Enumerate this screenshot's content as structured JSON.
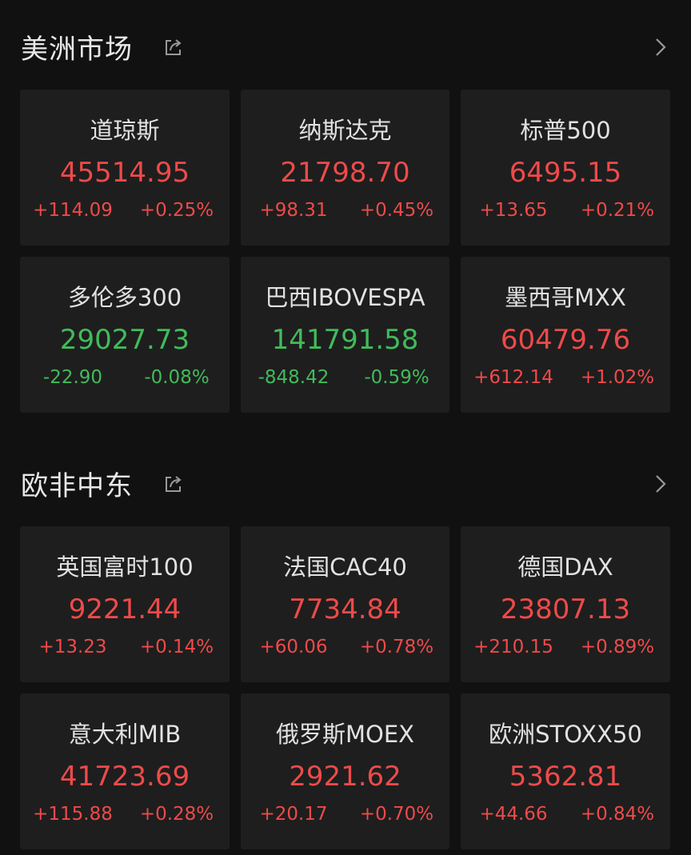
{
  "colors": {
    "up": "#ee4a4a",
    "down": "#41bb5b",
    "background": "#111111",
    "card": "#1e1e1e"
  },
  "sections": [
    {
      "title": "美洲市场",
      "share_icon": "share-icon",
      "more_icon": "chevron-right-icon",
      "items": [
        {
          "name": "道琼斯",
          "price": "45514.95",
          "change": "+114.09",
          "percent": "+0.25%",
          "dir": "up"
        },
        {
          "name": "纳斯达克",
          "price": "21798.70",
          "change": "+98.31",
          "percent": "+0.45%",
          "dir": "up"
        },
        {
          "name": "标普500",
          "price": "6495.15",
          "change": "+13.65",
          "percent": "+0.21%",
          "dir": "up"
        },
        {
          "name": "多伦多300",
          "price": "29027.73",
          "change": "-22.90",
          "percent": "-0.08%",
          "dir": "down"
        },
        {
          "name": "巴西IBOVESPA",
          "price": "141791.58",
          "change": "-848.42",
          "percent": "-0.59%",
          "dir": "down"
        },
        {
          "name": "墨西哥MXX",
          "price": "60479.76",
          "change": "+612.14",
          "percent": "+1.02%",
          "dir": "up"
        }
      ]
    },
    {
      "title": "欧非中东",
      "share_icon": "share-icon",
      "more_icon": "chevron-right-icon",
      "items": [
        {
          "name": "英国富时100",
          "price": "9221.44",
          "change": "+13.23",
          "percent": "+0.14%",
          "dir": "up"
        },
        {
          "name": "法国CAC40",
          "price": "7734.84",
          "change": "+60.06",
          "percent": "+0.78%",
          "dir": "up"
        },
        {
          "name": "德国DAX",
          "price": "23807.13",
          "change": "+210.15",
          "percent": "+0.89%",
          "dir": "up"
        },
        {
          "name": "意大利MIB",
          "price": "41723.69",
          "change": "+115.88",
          "percent": "+0.28%",
          "dir": "up"
        },
        {
          "name": "俄罗斯MOEX",
          "price": "2921.62",
          "change": "+20.17",
          "percent": "+0.70%",
          "dir": "up"
        },
        {
          "name": "欧洲STOXX50",
          "price": "5362.81",
          "change": "+44.66",
          "percent": "+0.84%",
          "dir": "up"
        }
      ]
    }
  ]
}
